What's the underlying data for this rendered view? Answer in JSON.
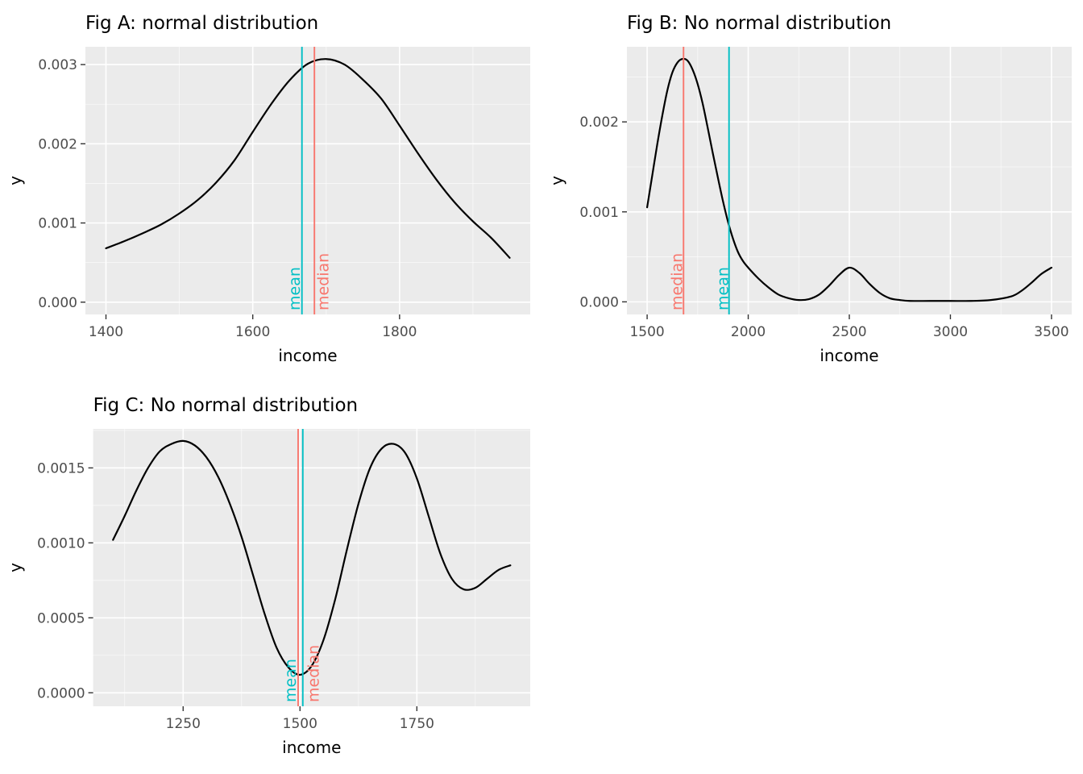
{
  "page": {
    "background": "#FFFFFF"
  },
  "colors": {
    "panel_bg": "#EBEBEB",
    "grid_major": "#FFFFFF",
    "grid_minor": "#F7F7F7",
    "curve": "#000000",
    "mean": "#00BFC4",
    "median": "#F8766D",
    "tick_text": "#4D4D4D",
    "title_text": "#000000",
    "axis_title_text": "#000000",
    "tick_mark": "#333333"
  },
  "chart_data": [
    {
      "id": "fig_a",
      "type": "line",
      "title": "Fig A: normal distribution",
      "xlabel": "income",
      "ylabel": "y",
      "x_range": [
        1372,
        1978
      ],
      "y_range": [
        -0.000155,
        0.003225
      ],
      "x_ticks": [
        1400,
        1600,
        1800
      ],
      "x_tick_labels": [
        "1400",
        "1600",
        "1800"
      ],
      "y_ticks": [
        0,
        0.001,
        0.002,
        0.003
      ],
      "y_tick_labels": [
        "0.000",
        "0.001",
        "0.002",
        "0.003"
      ],
      "grid": true,
      "legend": "none",
      "series": [
        {
          "name": "density",
          "x": [
            1400,
            1425,
            1450,
            1475,
            1500,
            1525,
            1550,
            1575,
            1600,
            1625,
            1650,
            1675,
            1700,
            1725,
            1750,
            1775,
            1800,
            1825,
            1850,
            1875,
            1900,
            1925,
            1950
          ],
          "y": [
            0.00068,
            0.00077,
            0.00087,
            0.00098,
            0.00112,
            0.00129,
            0.00151,
            0.00179,
            0.00215,
            0.0025,
            0.0028,
            0.00301,
            0.00307,
            0.003,
            0.00281,
            0.00257,
            0.00223,
            0.00188,
            0.00155,
            0.00126,
            0.00102,
            0.00081,
            0.00056
          ]
        }
      ],
      "vlines": [
        {
          "name": "mean",
          "x": 1667,
          "color_key": "mean",
          "label": "mean",
          "label_x": 1664,
          "label_angle": -90
        },
        {
          "name": "median",
          "x": 1684,
          "color_key": "median",
          "label": "median",
          "label_x": 1703,
          "label_angle": -90
        }
      ]
    },
    {
      "id": "fig_b",
      "type": "line",
      "title": "Fig B: No normal distribution",
      "xlabel": "income",
      "ylabel": "y",
      "x_range": [
        1400,
        3600
      ],
      "y_range": [
        -0.00014,
        0.002835
      ],
      "x_ticks": [
        1500,
        2000,
        2500,
        3000,
        3500
      ],
      "x_tick_labels": [
        "1500",
        "2000",
        "2500",
        "3000",
        "3500"
      ],
      "y_ticks": [
        0,
        0.001,
        0.002
      ],
      "y_tick_labels": [
        "0.000",
        "0.001",
        "0.002"
      ],
      "grid": true,
      "legend": "none",
      "series": [
        {
          "name": "density",
          "x": [
            1500,
            1525,
            1550,
            1575,
            1600,
            1625,
            1650,
            1675,
            1700,
            1725,
            1750,
            1775,
            1800,
            1825,
            1850,
            1875,
            1900,
            1925,
            1950,
            1975,
            2000,
            2050,
            2100,
            2150,
            2200,
            2250,
            2300,
            2350,
            2400,
            2450,
            2500,
            2550,
            2600,
            2650,
            2700,
            2750,
            2800,
            2900,
            3000,
            3100,
            3200,
            3300,
            3350,
            3400,
            3450,
            3500
          ],
          "y": [
            0.00105,
            0.0014,
            0.00175,
            0.00207,
            0.00235,
            0.00255,
            0.00266,
            0.0027,
            0.00268,
            0.00258,
            0.00242,
            0.0022,
            0.00193,
            0.00165,
            0.00138,
            0.00112,
            0.00089,
            0.0007,
            0.00055,
            0.00045,
            0.00038,
            0.00026,
            0.00016,
            8e-05,
            4e-05,
            2e-05,
            3e-05,
            8e-05,
            0.00018,
            0.0003,
            0.00038,
            0.00032,
            0.0002,
            0.0001,
            4e-05,
            2e-05,
            1e-05,
            1e-05,
            1e-05,
            1e-05,
            2e-05,
            6e-05,
            0.00012,
            0.00021,
            0.00031,
            0.00038
          ]
        }
      ],
      "vlines": [
        {
          "name": "median",
          "x": 1680,
          "color_key": "median",
          "label": "median",
          "label_x": 1674,
          "label_angle": -90
        },
        {
          "name": "mean",
          "x": 1905,
          "color_key": "mean",
          "label": "mean",
          "label_x": 1900,
          "label_angle": -90
        }
      ]
    },
    {
      "id": "fig_c",
      "type": "line",
      "title": "Fig C: No normal distribution",
      "xlabel": "income",
      "ylabel": "y",
      "x_range": [
        1057.5,
        1992.5
      ],
      "y_range": [
        -9e-05,
        0.00176
      ],
      "x_ticks": [
        1250,
        1500,
        1750
      ],
      "x_tick_labels": [
        "1250",
        "1500",
        "1750"
      ],
      "y_ticks": [
        0,
        0.0005,
        0.001,
        0.0015
      ],
      "y_tick_labels": [
        "0.0000",
        "0.0005",
        "0.0010",
        "0.0015"
      ],
      "grid": true,
      "legend": "none",
      "series": [
        {
          "name": "density",
          "x": [
            1100,
            1125,
            1150,
            1175,
            1200,
            1225,
            1250,
            1275,
            1300,
            1325,
            1350,
            1375,
            1400,
            1425,
            1450,
            1475,
            1500,
            1525,
            1550,
            1575,
            1600,
            1625,
            1650,
            1675,
            1700,
            1725,
            1750,
            1775,
            1800,
            1825,
            1850,
            1875,
            1900,
            1925,
            1950
          ],
          "y": [
            0.00102,
            0.00118,
            0.00135,
            0.0015,
            0.00161,
            0.00166,
            0.00168,
            0.00165,
            0.00157,
            0.00144,
            0.00126,
            0.00104,
            0.00078,
            0.00052,
            0.0003,
            0.00017,
            0.00012,
            0.00018,
            0.00035,
            0.00062,
            0.00095,
            0.00126,
            0.0015,
            0.00163,
            0.00166,
            0.0016,
            0.00143,
            0.00118,
            0.00093,
            0.00076,
            0.00069,
            0.0007,
            0.00076,
            0.00082,
            0.00085
          ]
        }
      ],
      "vlines": [
        {
          "name": "median",
          "x": 1496,
          "color_key": "median",
          "label": "median",
          "label_x": 1540,
          "label_angle": -90
        },
        {
          "name": "mean",
          "x": 1506,
          "color_key": "mean",
          "label": "mean",
          "label_x": 1491,
          "label_angle": -90
        }
      ]
    }
  ]
}
